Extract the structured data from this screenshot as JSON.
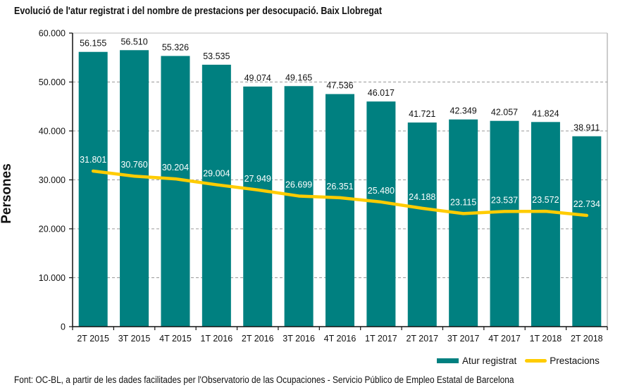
{
  "title": "Evolució de l'atur registrat i del nombre de prestacions per desocupació. Baix Llobregat",
  "footer": "Font: OC-BL, a partir de les dades facilitades per l'Observatorio de las Ocupaciones - Servicio Público de Empleo Estatal de Barcelona",
  "colors": {
    "bar": "#008080",
    "line": "#ffcc00",
    "grid": "#999999"
  },
  "chart_data": {
    "type": "bar",
    "title": "Evolució de l'atur registrat i del nombre de prestacions per desocupació. Baix Llobregat",
    "xlabel": "",
    "ylabel": "Persones",
    "ylim": [
      0,
      60000
    ],
    "yticks": [
      0,
      10000,
      20000,
      30000,
      40000,
      50000,
      60000
    ],
    "ytick_labels": [
      "0",
      "10.000",
      "20.000",
      "30.000",
      "40.000",
      "50.000",
      "60.000"
    ],
    "grid": true,
    "legend_position": "bottom-right",
    "categories": [
      "2T 2015",
      "3T 2015",
      "4T 2015",
      "1T 2016",
      "2T 2016",
      "3T 2016",
      "4T 2016",
      "1T 2017",
      "2T 2017",
      "3T 2017",
      "4T 2017",
      "1T 2018",
      "2T 2018"
    ],
    "series": [
      {
        "name": "Atur registrat",
        "type": "bar",
        "values": [
          56155,
          56510,
          55326,
          53535,
          49074,
          49165,
          47536,
          46017,
          41721,
          42349,
          42057,
          41824,
          38911
        ],
        "labels": [
          "56.155",
          "56.510",
          "55.326",
          "53.535",
          "49.074",
          "49.165",
          "47.536",
          "46.017",
          "41.721",
          "42.349",
          "42.057",
          "41.824",
          "38.911"
        ]
      },
      {
        "name": "Prestacions",
        "type": "line",
        "values": [
          31801,
          30760,
          30204,
          29004,
          27949,
          26699,
          26351,
          25480,
          24188,
          23115,
          23537,
          23572,
          22734
        ],
        "labels": [
          "31.801",
          "30.760",
          "30.204",
          "29.004",
          "27.949",
          "26.699",
          "26.351",
          "25.480",
          "24.188",
          "23.115",
          "23.537",
          "23.572",
          "22.734"
        ]
      }
    ]
  }
}
